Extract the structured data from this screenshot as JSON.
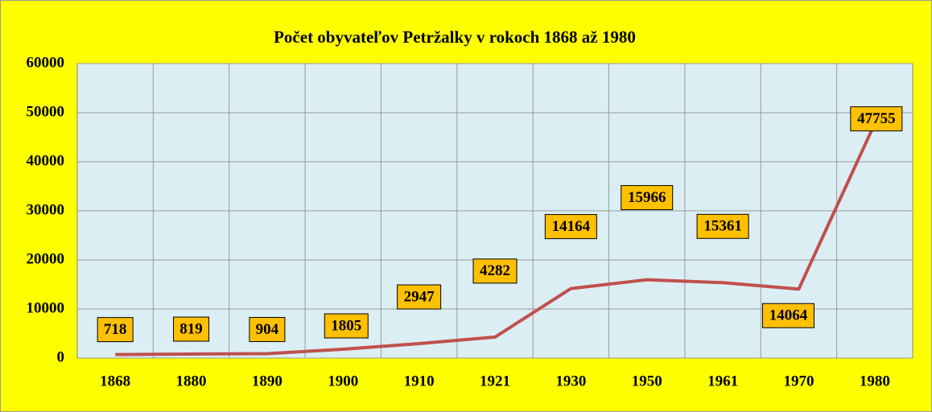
{
  "chart_data": {
    "type": "line",
    "title": "Počet obyvateľov Petržalky v rokoch 1868 až 1980",
    "categories": [
      "1868",
      "1880",
      "1890",
      "1900",
      "1910",
      "1921",
      "1930",
      "1950",
      "1961",
      "1970",
      "1980"
    ],
    "series": [
      {
        "name": "Počet obyvateľov",
        "color": "#c0504d",
        "values": [
          718,
          819,
          904,
          1805,
          2947,
          4282,
          14164,
          15966,
          15361,
          14064,
          47755
        ]
      }
    ],
    "ylim": [
      0,
      60000
    ],
    "yticks": [
      0,
      10000,
      20000,
      30000,
      40000,
      50000,
      60000
    ],
    "grid": true
  }
}
